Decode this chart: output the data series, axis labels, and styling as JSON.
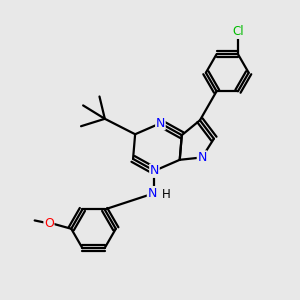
{
  "background_color": "#e8e8e8",
  "bond_color": "#000000",
  "nitrogen_color": "#0000ff",
  "oxygen_color": "#ff0000",
  "chlorine_color": "#00bb00",
  "line_width": 1.6,
  "figsize": [
    3.0,
    3.0
  ],
  "dpi": 100,
  "xlim": [
    0.0,
    1.0
  ],
  "ylim": [
    0.0,
    1.0
  ]
}
